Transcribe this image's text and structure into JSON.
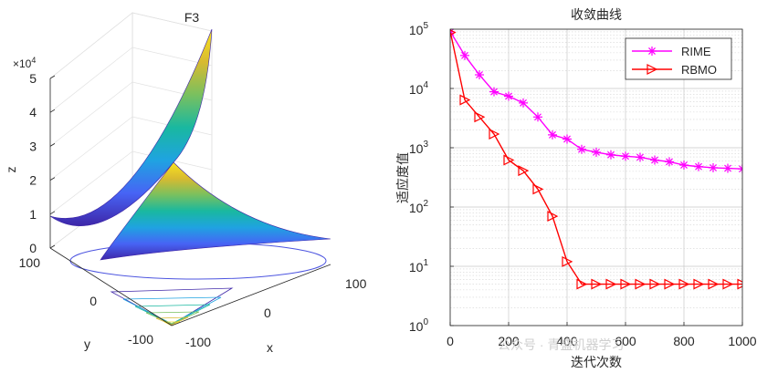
{
  "chart_data": [
    {
      "type": "surface3d",
      "title": "F3",
      "xlabel": "x",
      "ylabel": "y",
      "zlabel": "z",
      "z_scale_label": "×10",
      "z_scale_exp": "4",
      "x_ticks": [
        "-100",
        "0",
        "100"
      ],
      "y_ticks": [
        "-100",
        "0",
        "100"
      ],
      "z_ticks": [
        "0",
        "1",
        "2",
        "3",
        "4",
        "5"
      ],
      "z_max_data": 50000,
      "colormap": [
        "#3e26a8",
        "#4764f5",
        "#1fa3e1",
        "#19b8a0",
        "#79c05f",
        "#d8ba30",
        "#f9e31f"
      ]
    },
    {
      "type": "line",
      "yscale": "log",
      "title": "收敛曲线",
      "xlabel": "迭代次数",
      "ylabel": "适应度值",
      "xlim": [
        0,
        1000
      ],
      "ylim": [
        1,
        100000
      ],
      "x_ticks": [
        "0",
        "200",
        "400",
        "600",
        "800",
        "1000"
      ],
      "y_ticks": [
        {
          "base": "10",
          "exp": "0"
        },
        {
          "base": "10",
          "exp": "1"
        },
        {
          "base": "10",
          "exp": "2"
        },
        {
          "base": "10",
          "exp": "3"
        },
        {
          "base": "10",
          "exp": "4"
        },
        {
          "base": "10",
          "exp": "5"
        }
      ],
      "legend_position": "top-right",
      "x": [
        1,
        50,
        100,
        150,
        200,
        250,
        300,
        350,
        400,
        450,
        500,
        550,
        600,
        650,
        700,
        750,
        800,
        850,
        900,
        950,
        1000
      ],
      "series": [
        {
          "name": "RIME",
          "color": "#ff00ff",
          "marker": "asterisk",
          "values": [
            90000,
            36000,
            17000,
            8800,
            7400,
            5700,
            3300,
            1650,
            1400,
            940,
            840,
            760,
            720,
            690,
            620,
            580,
            510,
            480,
            460,
            450,
            440
          ]
        },
        {
          "name": "RBMO",
          "color": "#ff0000",
          "marker": "triangle-right",
          "values": [
            88000,
            6400,
            3300,
            1700,
            620,
            410,
            200,
            70,
            12,
            5,
            5,
            5,
            5,
            5,
            5,
            5,
            5,
            5,
            5,
            5,
            5
          ]
        }
      ]
    }
  ],
  "watermark": "公众号 · 青盛机器学习"
}
